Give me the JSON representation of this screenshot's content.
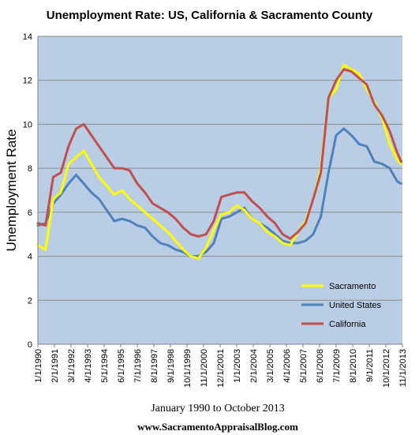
{
  "chart_data": {
    "type": "line",
    "title": "Unemployment Rate: US, California & Sacramento County",
    "xlabel": "January 1990 to October 2013",
    "ylabel": "Unemployment Rate",
    "ylim": [
      0,
      14
    ],
    "yticks": [
      0,
      2,
      4,
      6,
      8,
      10,
      12,
      14
    ],
    "x_range": [
      "1/1/1990",
      "11/1/2013"
    ],
    "x_tick_labels": [
      "1/1/1990",
      "2/1/1991",
      "3/1/1992",
      "4/1/1993",
      "5/1/1994",
      "6/1/1995",
      "7/1/1996",
      "8/1/1997",
      "9/1/1998",
      "10/1/1999",
      "11/1/2000",
      "12/1/2001",
      "1/1/2003",
      "2/1/2004",
      "3/1/2005",
      "4/1/2006",
      "5/1/2007",
      "6/1/2008",
      "7/1/2009",
      "8/1/2010",
      "9/1/2011",
      "10/1/2012",
      "11/1/2013"
    ],
    "grid": true,
    "legend_position": "lower-right",
    "plot_background": "#b9cde5",
    "series": [
      {
        "name": "Sacramento",
        "color": "#ffff00",
        "x": [
          "1/1/1990",
          "7/1/1990",
          "1/1/1991",
          "7/1/1991",
          "1/1/1992",
          "7/1/1992",
          "1/1/1993",
          "7/1/1993",
          "1/1/1994",
          "7/1/1994",
          "1/1/1995",
          "7/1/1995",
          "1/1/1996",
          "7/1/1996",
          "1/1/1997",
          "7/1/1997",
          "1/1/1998",
          "7/1/1998",
          "1/1/1999",
          "7/1/1999",
          "1/1/2000",
          "7/1/2000",
          "1/1/2001",
          "7/1/2001",
          "1/1/2002",
          "7/1/2002",
          "1/1/2003",
          "7/1/2003",
          "1/1/2004",
          "7/1/2004",
          "1/1/2005",
          "7/1/2005",
          "1/1/2006",
          "7/1/2006",
          "1/1/2007",
          "7/1/2007",
          "1/1/2008",
          "7/1/2008",
          "1/1/2009",
          "7/1/2009",
          "1/1/2010",
          "7/1/2010",
          "1/1/2011",
          "7/1/2011",
          "1/1/2012",
          "7/1/2012",
          "1/1/2013",
          "7/1/2013",
          "10/1/2013"
        ],
        "values": [
          4.5,
          4.3,
          6.6,
          6.9,
          8.2,
          8.5,
          8.8,
          8.2,
          7.6,
          7.2,
          6.8,
          7.0,
          6.6,
          6.3,
          6.0,
          5.7,
          5.4,
          5.1,
          4.7,
          4.3,
          4.0,
          3.9,
          4.4,
          5.2,
          5.9,
          6.0,
          6.3,
          6.1,
          5.7,
          5.5,
          5.1,
          4.9,
          4.6,
          4.5,
          5.1,
          5.6,
          6.6,
          8.0,
          11.2,
          11.6,
          12.7,
          12.5,
          12.3,
          11.6,
          11.0,
          10.3,
          9.1,
          8.4,
          8.2
        ]
      },
      {
        "name": "United States",
        "color": "#4f81bd",
        "x": [
          "1/1/1990",
          "7/1/1990",
          "1/1/1991",
          "7/1/1991",
          "1/1/1992",
          "7/1/1992",
          "1/1/1993",
          "7/1/1993",
          "1/1/1994",
          "7/1/1994",
          "1/1/1995",
          "7/1/1995",
          "1/1/1996",
          "7/1/1996",
          "1/1/1997",
          "7/1/1997",
          "1/1/1998",
          "7/1/1998",
          "1/1/1999",
          "7/1/1999",
          "1/1/2000",
          "7/1/2000",
          "1/1/2001",
          "7/1/2001",
          "1/1/2002",
          "7/1/2002",
          "1/1/2003",
          "7/1/2003",
          "1/1/2004",
          "7/1/2004",
          "1/1/2005",
          "7/1/2005",
          "1/1/2006",
          "7/1/2006",
          "1/1/2007",
          "7/1/2007",
          "1/1/2008",
          "7/1/2008",
          "1/1/2009",
          "7/1/2009",
          "1/1/2010",
          "7/1/2010",
          "1/1/2011",
          "7/1/2011",
          "1/1/2012",
          "7/1/2012",
          "1/1/2013",
          "7/1/2013",
          "10/1/2013"
        ],
        "values": [
          5.4,
          5.5,
          6.4,
          6.8,
          7.3,
          7.7,
          7.3,
          6.9,
          6.6,
          6.1,
          5.6,
          5.7,
          5.6,
          5.4,
          5.3,
          4.9,
          4.6,
          4.5,
          4.3,
          4.2,
          4.0,
          4.0,
          4.2,
          4.6,
          5.7,
          5.8,
          6.0,
          6.2,
          5.7,
          5.5,
          5.3,
          5.0,
          4.7,
          4.6,
          4.6,
          4.7,
          5.0,
          5.8,
          7.8,
          9.5,
          9.8,
          9.5,
          9.1,
          9.0,
          8.3,
          8.2,
          8.0,
          7.4,
          7.3
        ]
      },
      {
        "name": "California",
        "color": "#c0504d",
        "x": [
          "1/1/1990",
          "7/1/1990",
          "1/1/1991",
          "7/1/1991",
          "1/1/1992",
          "7/1/1992",
          "1/1/1993",
          "7/1/1993",
          "1/1/1994",
          "7/1/1994",
          "1/1/1995",
          "7/1/1995",
          "1/1/1996",
          "7/1/1996",
          "1/1/1997",
          "7/1/1997",
          "1/1/1998",
          "7/1/1998",
          "1/1/1999",
          "7/1/1999",
          "1/1/2000",
          "7/1/2000",
          "1/1/2001",
          "7/1/2001",
          "1/1/2002",
          "7/1/2002",
          "1/1/2003",
          "7/1/2003",
          "1/1/2004",
          "7/1/2004",
          "1/1/2005",
          "7/1/2005",
          "1/1/2006",
          "7/1/2006",
          "1/1/2007",
          "7/1/2007",
          "1/1/2008",
          "7/1/2008",
          "1/1/2009",
          "7/1/2009",
          "1/1/2010",
          "7/1/2010",
          "1/1/2011",
          "7/1/2011",
          "1/1/2012",
          "7/1/2012",
          "1/1/2013",
          "7/1/2013",
          "10/1/2013"
        ],
        "values": [
          5.5,
          5.4,
          7.6,
          7.8,
          9.0,
          9.8,
          10.0,
          9.5,
          9.0,
          8.5,
          8.0,
          8.0,
          7.9,
          7.3,
          6.9,
          6.4,
          6.2,
          6.0,
          5.7,
          5.3,
          5.0,
          4.9,
          5.0,
          5.6,
          6.7,
          6.8,
          6.9,
          6.9,
          6.5,
          6.2,
          5.8,
          5.5,
          5.0,
          4.8,
          5.1,
          5.5,
          6.6,
          7.8,
          11.2,
          12.0,
          12.5,
          12.4,
          12.1,
          11.8,
          10.9,
          10.4,
          9.7,
          8.7,
          8.3
        ]
      }
    ]
  },
  "footer": "www.SacramentoAppraisalBlog.com"
}
